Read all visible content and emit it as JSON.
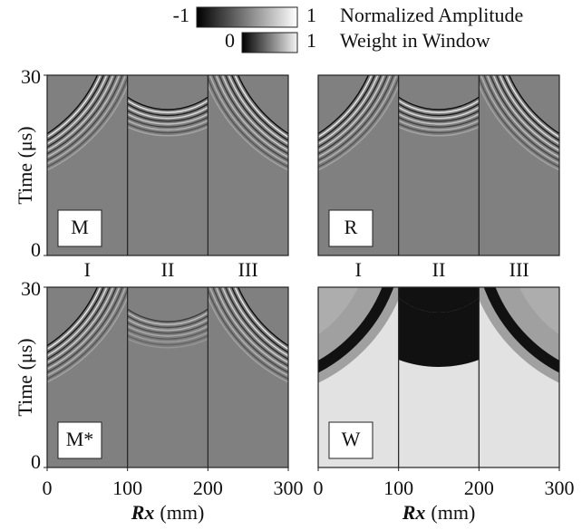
{
  "colorbars": [
    {
      "min": -1,
      "max": 1,
      "label": "Normalized Amplitude"
    },
    {
      "min": 0,
      "max": 1,
      "label": "Weight in Window"
    }
  ],
  "chart_data": [
    {
      "type": "image",
      "label": "M",
      "style": "amplitude",
      "xlim": [
        0,
        300
      ],
      "ylim": [
        0,
        30
      ],
      "yticks": [
        0,
        30
      ],
      "ylabel": "Time (μs)",
      "dividers": [
        100,
        200
      ],
      "regions": [
        "I",
        "II",
        "III"
      ]
    },
    {
      "type": "image",
      "label": "R",
      "style": "amplitude",
      "xlim": [
        0,
        300
      ],
      "ylim": [
        0,
        30
      ],
      "dividers": [
        100,
        200
      ],
      "regions": [
        "I",
        "II",
        "III"
      ]
    },
    {
      "type": "image",
      "label": "M*",
      "style": "amplitude",
      "xlim": [
        0,
        300
      ],
      "ylim": [
        0,
        30
      ],
      "yticks": [
        0,
        30
      ],
      "ylabel": "Time (μs)",
      "xticks": [
        0,
        100,
        200,
        300
      ],
      "xlabel_var": "Rx",
      "xlabel_unit": "(mm)",
      "dividers": [
        100,
        200
      ]
    },
    {
      "type": "image",
      "label": "W",
      "style": "weight",
      "xlim": [
        0,
        300
      ],
      "ylim": [
        0,
        30
      ],
      "xticks": [
        0,
        100,
        200,
        300
      ],
      "xlabel_var": "Rx",
      "xlabel_unit": "(mm)",
      "dividers": [
        100,
        200
      ]
    }
  ]
}
